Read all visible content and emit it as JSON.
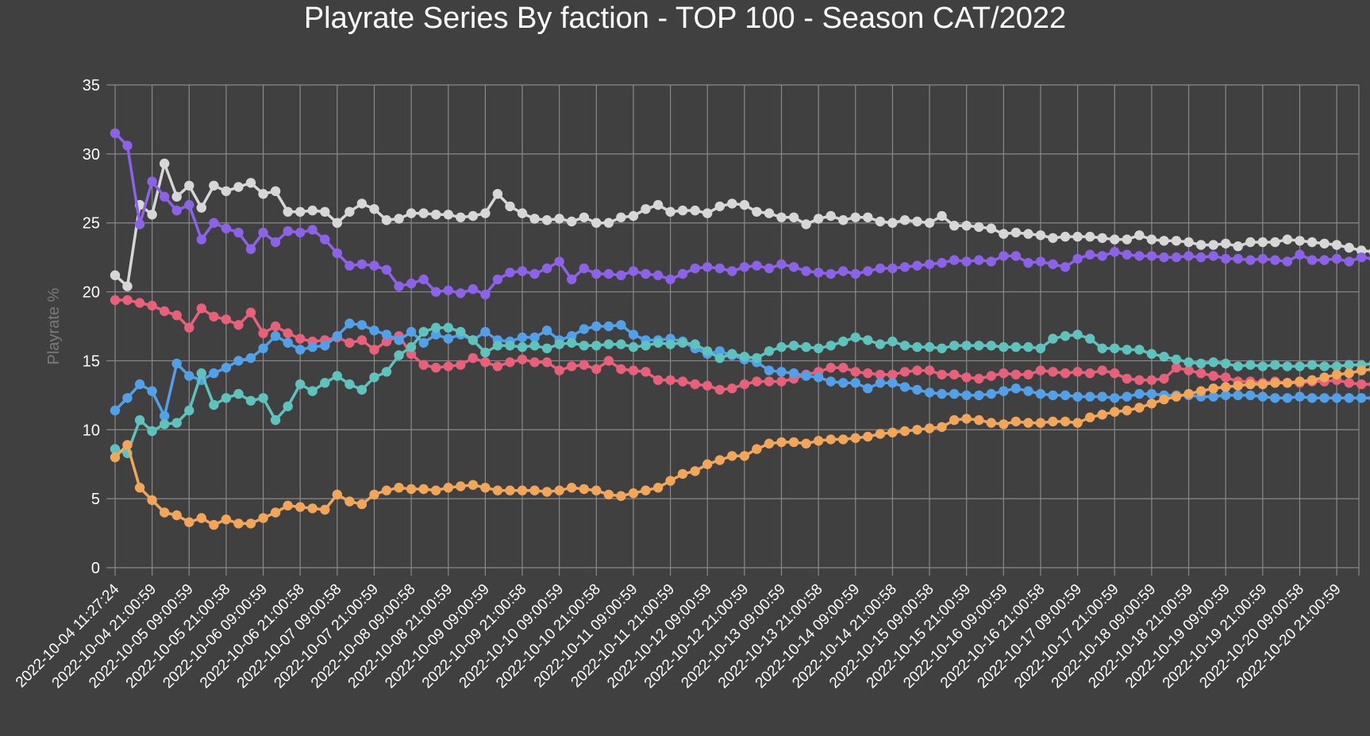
{
  "chart_data": {
    "type": "line",
    "title": "Playrate Series By faction - TOP 100 - Season CAT/2022",
    "xlabel": "",
    "ylabel": "Playrate %",
    "ylim": [
      0,
      35
    ],
    "yticks": [
      0,
      5,
      10,
      15,
      20,
      25,
      30,
      35
    ],
    "grid": true,
    "legend": "none",
    "xticks": [
      "2022-10-04 11:27:24",
      "2022-10-04 21:00:59",
      "2022-10-05 09:00:59",
      "2022-10-05 21:00:58",
      "2022-10-06 09:00:59",
      "2022-10-06 21:00:58",
      "2022-10-07 09:00:58",
      "2022-10-07 21:00:59",
      "2022-10-08 09:00:58",
      "2022-10-08 21:00:59",
      "2022-10-09 09:00:59",
      "2022-10-09 21:00:58",
      "2022-10-10 09:00:59",
      "2022-10-10 21:00:58",
      "2022-10-11 09:00:59",
      "2022-10-11 21:00:59",
      "2022-10-12 09:00:59",
      "2022-10-12 21:00:59",
      "2022-10-13 09:00:59",
      "2022-10-13 21:00:58",
      "2022-10-14 09:00:59",
      "2022-10-14 21:00:58",
      "2022-10-15 09:00:58",
      "2022-10-15 21:00:59",
      "2022-10-16 09:00:59",
      "2022-10-16 21:00:58",
      "2022-10-17 09:00:59",
      "2022-10-17 21:00:59",
      "2022-10-18 09:00:59",
      "2022-10-18 21:00:59",
      "2022-10-19 09:00:59",
      "2022-10-19 21:00:59",
      "2022-10-20 09:00:58",
      "2022-10-20 21:00:59"
    ],
    "points_per_label": 3,
    "series": [
      {
        "color": "#d7d7d7",
        "values": [
          21.2,
          20.4,
          26.3,
          25.6,
          29.3,
          26.9,
          27.7,
          26.1,
          27.7,
          27.3,
          27.6,
          27.9,
          27.1,
          27.3,
          25.8,
          25.8,
          25.9,
          25.8,
          25.0,
          25.8,
          26.4,
          26.0,
          25.2,
          25.3,
          25.7,
          25.7,
          25.6,
          25.6,
          25.4,
          25.5,
          25.7,
          27.1,
          26.2,
          25.7,
          25.3,
          25.2,
          25.3,
          25.1,
          25.4,
          25.0,
          25.0,
          25.4,
          25.5,
          26.0,
          26.3,
          25.8,
          25.9,
          25.9,
          25.7,
          26.2,
          26.4,
          26.3,
          25.8,
          25.7,
          25.4,
          25.4,
          24.9,
          25.3,
          25.5,
          25.2,
          25.4,
          25.4,
          25.1,
          25.0,
          25.2,
          25.1,
          25.0,
          25.5,
          24.8,
          24.8,
          24.7,
          24.6,
          24.2,
          24.3,
          24.2,
          24.1,
          23.9,
          24.0,
          24.0,
          24.0,
          23.9,
          23.8,
          23.8,
          24.1,
          23.8,
          23.7,
          23.7,
          23.6,
          23.4,
          23.4,
          23.5,
          23.3,
          23.6,
          23.6,
          23.6,
          23.8,
          23.7,
          23.6,
          23.5,
          23.4,
          23.2,
          23.0,
          22.9,
          22.7
        ]
      },
      {
        "color": "#8b62e8",
        "values": [
          31.5,
          30.6,
          24.9,
          28.0,
          26.9,
          25.9,
          26.3,
          23.8,
          25.0,
          24.6,
          24.3,
          23.1,
          24.3,
          23.6,
          24.4,
          24.3,
          24.5,
          23.8,
          22.8,
          21.9,
          22.0,
          21.9,
          21.6,
          20.4,
          20.6,
          20.9,
          20.0,
          20.1,
          19.9,
          20.2,
          19.8,
          20.9,
          21.4,
          21.5,
          21.3,
          21.7,
          22.2,
          20.9,
          21.7,
          21.3,
          21.3,
          21.2,
          21.5,
          21.3,
          21.2,
          20.9,
          21.3,
          21.7,
          21.8,
          21.7,
          21.5,
          21.8,
          21.9,
          21.7,
          22.0,
          21.8,
          21.5,
          21.4,
          21.3,
          21.5,
          21.3,
          21.5,
          21.7,
          21.7,
          21.8,
          21.9,
          22.0,
          22.1,
          22.3,
          22.2,
          22.3,
          22.2,
          22.6,
          22.6,
          22.1,
          22.2,
          22.0,
          21.8,
          22.4,
          22.7,
          22.6,
          22.9,
          22.7,
          22.6,
          22.6,
          22.5,
          22.5,
          22.6,
          22.5,
          22.6,
          22.4,
          22.4,
          22.3,
          22.4,
          22.3,
          22.2,
          22.7,
          22.3,
          22.3,
          22.4,
          22.2,
          22.5,
          22.4,
          22.5
        ]
      },
      {
        "color": "#e8607a",
        "values": [
          19.4,
          19.4,
          19.2,
          19.0,
          18.6,
          18.3,
          17.4,
          18.8,
          18.2,
          18.0,
          17.6,
          18.5,
          17.0,
          17.5,
          17.0,
          16.6,
          16.4,
          16.5,
          16.7,
          16.3,
          16.5,
          15.8,
          16.4,
          16.8,
          15.5,
          14.7,
          14.5,
          14.6,
          14.7,
          15.2,
          14.9,
          14.6,
          14.9,
          15.1,
          14.9,
          14.9,
          14.3,
          14.6,
          14.7,
          14.4,
          15.0,
          14.4,
          14.3,
          14.2,
          13.6,
          13.6,
          13.5,
          13.3,
          13.2,
          12.9,
          13.0,
          13.3,
          13.5,
          13.5,
          13.5,
          13.7,
          14.0,
          14.2,
          14.5,
          14.5,
          14.2,
          14.1,
          14.0,
          14.0,
          14.2,
          14.3,
          14.3,
          14.0,
          14.0,
          13.8,
          13.7,
          13.9,
          14.1,
          14.0,
          14.0,
          14.3,
          14.2,
          14.1,
          14.2,
          14.1,
          14.3,
          14.1,
          13.7,
          13.6,
          13.6,
          13.7,
          14.5,
          14.3,
          14.1,
          13.9,
          13.8,
          13.5,
          13.5,
          13.4,
          13.5,
          13.4,
          13.4,
          13.5,
          13.5,
          13.6,
          13.4,
          13.3,
          13.3,
          13.3
        ]
      },
      {
        "color": "#52a0e8",
        "values": [
          11.4,
          12.3,
          13.3,
          12.8,
          11.0,
          14.8,
          13.9,
          13.6,
          14.1,
          14.5,
          15.0,
          15.2,
          15.9,
          16.8,
          16.3,
          15.8,
          16.0,
          16.1,
          16.8,
          17.7,
          17.6,
          17.2,
          16.9,
          16.5,
          17.1,
          16.3,
          16.9,
          16.6,
          16.9,
          16.5,
          17.1,
          16.5,
          16.4,
          16.7,
          16.7,
          17.2,
          16.5,
          16.8,
          17.3,
          17.5,
          17.5,
          17.6,
          16.9,
          16.5,
          16.5,
          16.6,
          16.4,
          15.9,
          15.5,
          15.7,
          15.4,
          15.1,
          14.9,
          14.3,
          14.2,
          14.1,
          13.9,
          13.8,
          13.5,
          13.4,
          13.4,
          13.0,
          13.4,
          13.4,
          13.1,
          12.9,
          12.7,
          12.6,
          12.6,
          12.5,
          12.5,
          12.6,
          12.8,
          13.0,
          12.8,
          12.6,
          12.5,
          12.5,
          12.4,
          12.4,
          12.4,
          12.3,
          12.4,
          12.6,
          12.6,
          12.5,
          12.5,
          12.5,
          12.4,
          12.4,
          12.5,
          12.5,
          12.5,
          12.4,
          12.3,
          12.3,
          12.4,
          12.3,
          12.3,
          12.3,
          12.3,
          12.3,
          12.3,
          12.3
        ]
      },
      {
        "color": "#5ec2bd",
        "values": [
          8.6,
          8.3,
          10.7,
          9.9,
          10.4,
          10.5,
          11.4,
          14.1,
          11.8,
          12.3,
          12.6,
          12.1,
          12.3,
          10.7,
          11.7,
          13.3,
          12.8,
          13.4,
          13.9,
          13.3,
          12.9,
          13.8,
          14.2,
          15.4,
          16.0,
          17.1,
          17.4,
          17.4,
          17.1,
          16.5,
          15.6,
          16.1,
          16.1,
          16.0,
          16.1,
          15.9,
          16.2,
          16.3,
          16.1,
          16.1,
          16.2,
          16.2,
          16.0,
          16.1,
          16.3,
          16.2,
          16.3,
          16.2,
          15.7,
          15.2,
          15.5,
          15.3,
          15.2,
          15.7,
          16.0,
          16.1,
          16.0,
          15.9,
          16.1,
          16.4,
          16.7,
          16.5,
          16.2,
          16.4,
          16.1,
          16.0,
          16.0,
          15.9,
          16.1,
          16.1,
          16.1,
          16.1,
          16.0,
          16.0,
          16.0,
          15.9,
          16.6,
          16.8,
          16.9,
          16.6,
          15.9,
          15.9,
          15.8,
          15.8,
          15.5,
          15.3,
          15.1,
          14.9,
          14.8,
          14.9,
          14.8,
          14.6,
          14.7,
          14.6,
          14.7,
          14.6,
          14.6,
          14.7,
          14.6,
          14.6,
          14.7,
          14.7,
          14.8,
          14.8
        ]
      },
      {
        "color": "#f2a65a",
        "values": [
          8.0,
          8.9,
          5.8,
          4.9,
          4.0,
          3.8,
          3.3,
          3.6,
          3.1,
          3.5,
          3.2,
          3.2,
          3.6,
          4.0,
          4.5,
          4.4,
          4.3,
          4.2,
          5.3,
          4.8,
          4.6,
          5.3,
          5.6,
          5.8,
          5.7,
          5.7,
          5.6,
          5.8,
          5.9,
          6.0,
          5.8,
          5.6,
          5.6,
          5.6,
          5.6,
          5.5,
          5.6,
          5.8,
          5.7,
          5.6,
          5.3,
          5.2,
          5.4,
          5.6,
          5.8,
          6.3,
          6.8,
          7.0,
          7.5,
          7.8,
          8.1,
          8.1,
          8.6,
          9.0,
          9.1,
          9.1,
          9.0,
          9.2,
          9.3,
          9.3,
          9.4,
          9.5,
          9.7,
          9.8,
          9.9,
          10.0,
          10.1,
          10.2,
          10.7,
          10.8,
          10.7,
          10.5,
          10.4,
          10.6,
          10.5,
          10.5,
          10.6,
          10.6,
          10.5,
          10.9,
          11.1,
          11.3,
          11.4,
          11.6,
          11.9,
          12.2,
          12.4,
          12.6,
          12.8,
          13.0,
          13.1,
          13.2,
          13.3,
          13.3,
          13.4,
          13.4,
          13.5,
          13.6,
          13.8,
          14.0,
          14.1,
          14.3,
          14.4,
          14.5
        ]
      }
    ]
  }
}
